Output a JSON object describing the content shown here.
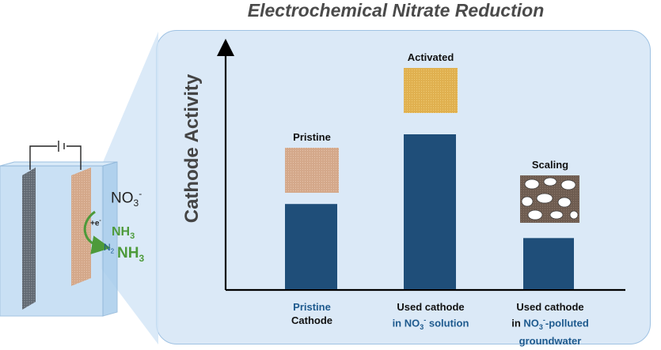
{
  "title": "Electrochemical Nitrate Reduction",
  "y_axis_label": "Cathode Activity",
  "cell": {
    "no3_main": "NO",
    "no3_sub": "3",
    "no3_sup": "-",
    "electron_main": "+e",
    "electron_sup": "-",
    "nh3_a_main": "NH",
    "nh3_a_sub": "3",
    "n2_main": "N",
    "n2_sub": "2",
    "nh3_b_main": "NH",
    "nh3_b_sub": "3"
  },
  "samples": [
    {
      "tag": "Pristine"
    },
    {
      "tag": "Activated"
    },
    {
      "tag": "Scaling"
    }
  ],
  "xlabels": [
    {
      "line1": "Pristine",
      "line2": "Cathode"
    },
    {
      "line1": "Used cathode",
      "line2_a": "in NO",
      "line2_sub": "3",
      "line2_sup": "-",
      "line2_b": " solution"
    },
    {
      "line1": "Used cathode",
      "line2_a": "in ",
      "line2_b": "NO",
      "line2_sub": "3",
      "line2_sup": "-",
      "line2_c": "-polluted",
      "line3": "groundwater"
    }
  ],
  "chart_data": {
    "type": "bar",
    "categories": [
      "Pristine Cathode",
      "Used cathode in NO3- solution",
      "Used cathode in NO3--polluted groundwater"
    ],
    "values": [
      0.55,
      1.0,
      0.33
    ],
    "colors": {
      "bar": "#1f4e79",
      "axis": "#000000",
      "blue_text": "#1e5a8e"
    }
  }
}
